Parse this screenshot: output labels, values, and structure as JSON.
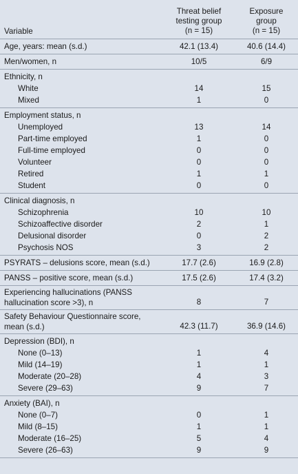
{
  "header": {
    "variable": "Variable",
    "group1_line1": "Threat belief",
    "group1_line2": "testing group",
    "group1_n": "(n = 15)",
    "group2_line1": "Exposure",
    "group2_line2": "group",
    "group2_n": "(n = 15)"
  },
  "rows": {
    "age": {
      "label": "Age, years: mean (s.d.)",
      "g1": "42.1 (13.4)",
      "g2": "40.6 (14.4)"
    },
    "sex": {
      "label": "Men/women, n",
      "g1": "10/5",
      "g2": "6/9"
    },
    "ethnicity": {
      "label": "Ethnicity, n",
      "white": {
        "label": "White",
        "g1": "14",
        "g2": "15"
      },
      "mixed": {
        "label": "Mixed",
        "g1": "1",
        "g2": "0"
      }
    },
    "employment": {
      "label": "Employment status, n",
      "unemployed": {
        "label": "Unemployed",
        "g1": "13",
        "g2": "14"
      },
      "parttime": {
        "label": "Part-time employed",
        "g1": "1",
        "g2": "0"
      },
      "fulltime": {
        "label": "Full-time employed",
        "g1": "0",
        "g2": "0"
      },
      "volunteer": {
        "label": "Volunteer",
        "g1": "0",
        "g2": "0"
      },
      "retired": {
        "label": "Retired",
        "g1": "1",
        "g2": "1"
      },
      "student": {
        "label": "Student",
        "g1": "0",
        "g2": "0"
      }
    },
    "diagnosis": {
      "label": "Clinical diagnosis, n",
      "schizophrenia": {
        "label": "Schizophrenia",
        "g1": "10",
        "g2": "10"
      },
      "schizoaffective": {
        "label": "Schizoaffective disorder",
        "g1": "2",
        "g2": "1"
      },
      "delusional": {
        "label": "Delusional disorder",
        "g1": "0",
        "g2": "2"
      },
      "nos": {
        "label": "Psychosis NOS",
        "g1": "3",
        "g2": "2"
      }
    },
    "psyrats": {
      "label": "PSYRATS – delusions score, mean (s.d.)",
      "g1": "17.7 (2.6)",
      "g2": "16.9 (2.8)"
    },
    "panss": {
      "label": "PANSS – positive score, mean (s.d.)",
      "g1": "17.5 (2.6)",
      "g2": "17.4 (3.2)"
    },
    "hallucinations": {
      "label_line1": "Experiencing hallucinations (PANSS",
      "label_line2": "hallucination score >3), n",
      "g1": "8",
      "g2": "7"
    },
    "safety": {
      "label_line1": "Safety Behaviour Questionnaire score,",
      "label_line2": "mean (s.d.)",
      "g1": "42.3 (11.7)",
      "g2": "36.9 (14.6)"
    },
    "depression": {
      "label": "Depression (BDI), n",
      "none": {
        "label": "None (0–13)",
        "g1": "1",
        "g2": "4"
      },
      "mild": {
        "label": "Mild (14–19)",
        "g1": "1",
        "g2": "1"
      },
      "moderate": {
        "label": "Moderate (20–28)",
        "g1": "4",
        "g2": "3"
      },
      "severe": {
        "label": "Severe (29–63)",
        "g1": "9",
        "g2": "7"
      }
    },
    "anxiety": {
      "label": "Anxiety (BAI), n",
      "none": {
        "label": "None (0–7)",
        "g1": "0",
        "g2": "1"
      },
      "mild": {
        "label": "Mild (8–15)",
        "g1": "1",
        "g2": "1"
      },
      "moderate": {
        "label": "Moderate (16–25)",
        "g1": "5",
        "g2": "4"
      },
      "severe": {
        "label": "Severe (26–63)",
        "g1": "9",
        "g2": "9"
      }
    }
  }
}
